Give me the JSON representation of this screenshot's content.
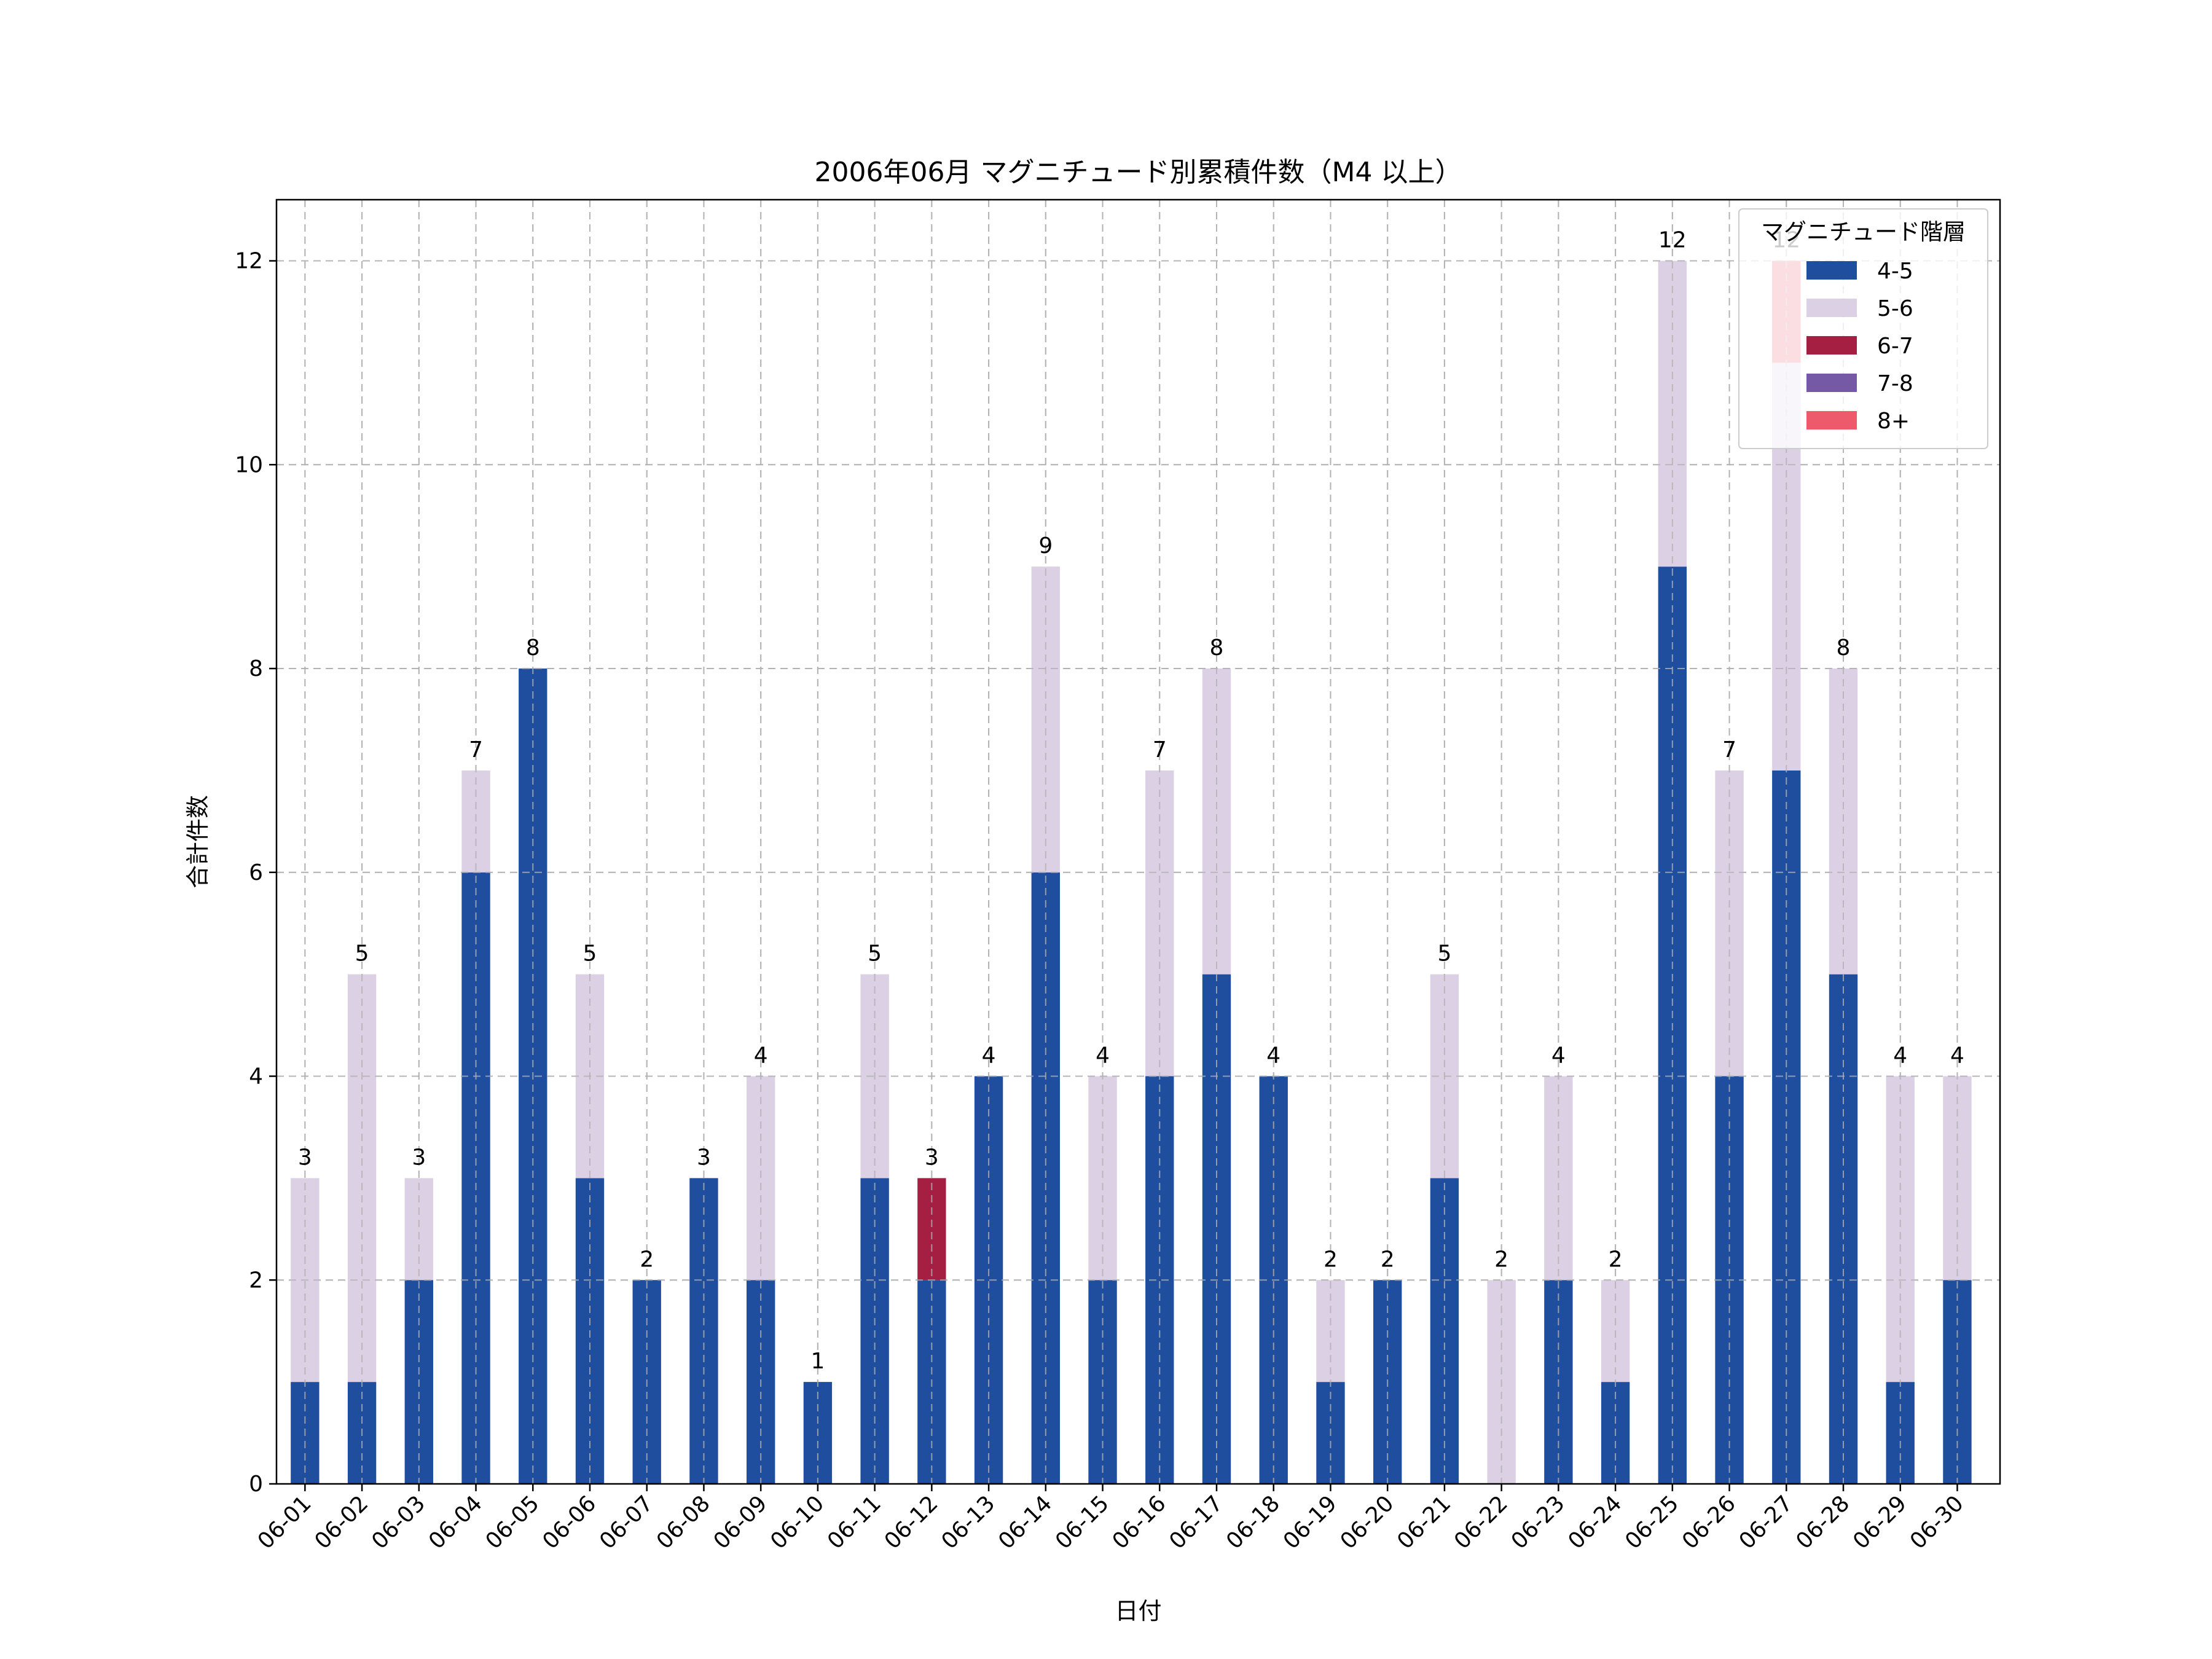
{
  "chart_data": {
    "type": "bar",
    "stacked": true,
    "title": "2006年06月 マグニチュード別累積件数（M4 以上）",
    "xlabel": "日付",
    "ylabel": "合計件数",
    "ylim": [
      0,
      12.6
    ],
    "yticks": [
      0,
      2,
      4,
      6,
      8,
      10,
      12
    ],
    "grid": true,
    "legend_title": "マグニチュード階層",
    "legend_position": "top-right",
    "categories": [
      "06-01",
      "06-02",
      "06-03",
      "06-04",
      "06-05",
      "06-06",
      "06-07",
      "06-08",
      "06-09",
      "06-10",
      "06-11",
      "06-12",
      "06-13",
      "06-14",
      "06-15",
      "06-16",
      "06-17",
      "06-18",
      "06-19",
      "06-20",
      "06-21",
      "06-22",
      "06-23",
      "06-24",
      "06-25",
      "06-26",
      "06-27",
      "06-28",
      "06-29",
      "06-30"
    ],
    "series": [
      {
        "name": "4-5",
        "color": "#1f4e9e",
        "values": [
          1,
          1,
          2,
          6,
          8,
          3,
          2,
          3,
          2,
          1,
          3,
          2,
          4,
          6,
          2,
          4,
          5,
          4,
          1,
          2,
          3,
          0,
          2,
          1,
          9,
          4,
          7,
          5,
          1,
          2
        ]
      },
      {
        "name": "5-6",
        "color": "#dcd0e4",
        "values": [
          2,
          4,
          1,
          1,
          0,
          2,
          0,
          0,
          2,
          0,
          2,
          0,
          0,
          3,
          2,
          3,
          3,
          0,
          1,
          0,
          2,
          2,
          2,
          1,
          3,
          3,
          4,
          3,
          3,
          2
        ]
      },
      {
        "name": "6-7",
        "color": "#a51f42",
        "values": [
          0,
          0,
          0,
          0,
          0,
          0,
          0,
          0,
          0,
          0,
          0,
          1,
          0,
          0,
          0,
          0,
          0,
          0,
          0,
          0,
          0,
          0,
          0,
          0,
          0,
          0,
          0,
          0,
          0,
          0
        ]
      },
      {
        "name": "7-8",
        "color": "#7558a6",
        "values": [
          0,
          0,
          0,
          0,
          0,
          0,
          0,
          0,
          0,
          0,
          0,
          0,
          0,
          0,
          0,
          0,
          0,
          0,
          0,
          0,
          0,
          0,
          0,
          0,
          0,
          0,
          0,
          0,
          0,
          0
        ]
      },
      {
        "name": "8+",
        "color": "#ec5a6b",
        "values": [
          0,
          0,
          0,
          0,
          0,
          0,
          0,
          0,
          0,
          0,
          0,
          0,
          0,
          0,
          0,
          0,
          0,
          0,
          0,
          0,
          0,
          0,
          0,
          0,
          0,
          0,
          1,
          0,
          0,
          0
        ]
      }
    ],
    "totals": [
      3,
      5,
      3,
      7,
      8,
      5,
      2,
      3,
      4,
      1,
      5,
      3,
      4,
      9,
      4,
      7,
      8,
      4,
      2,
      2,
      5,
      2,
      4,
      2,
      12,
      7,
      12,
      8,
      4,
      4
    ]
  }
}
